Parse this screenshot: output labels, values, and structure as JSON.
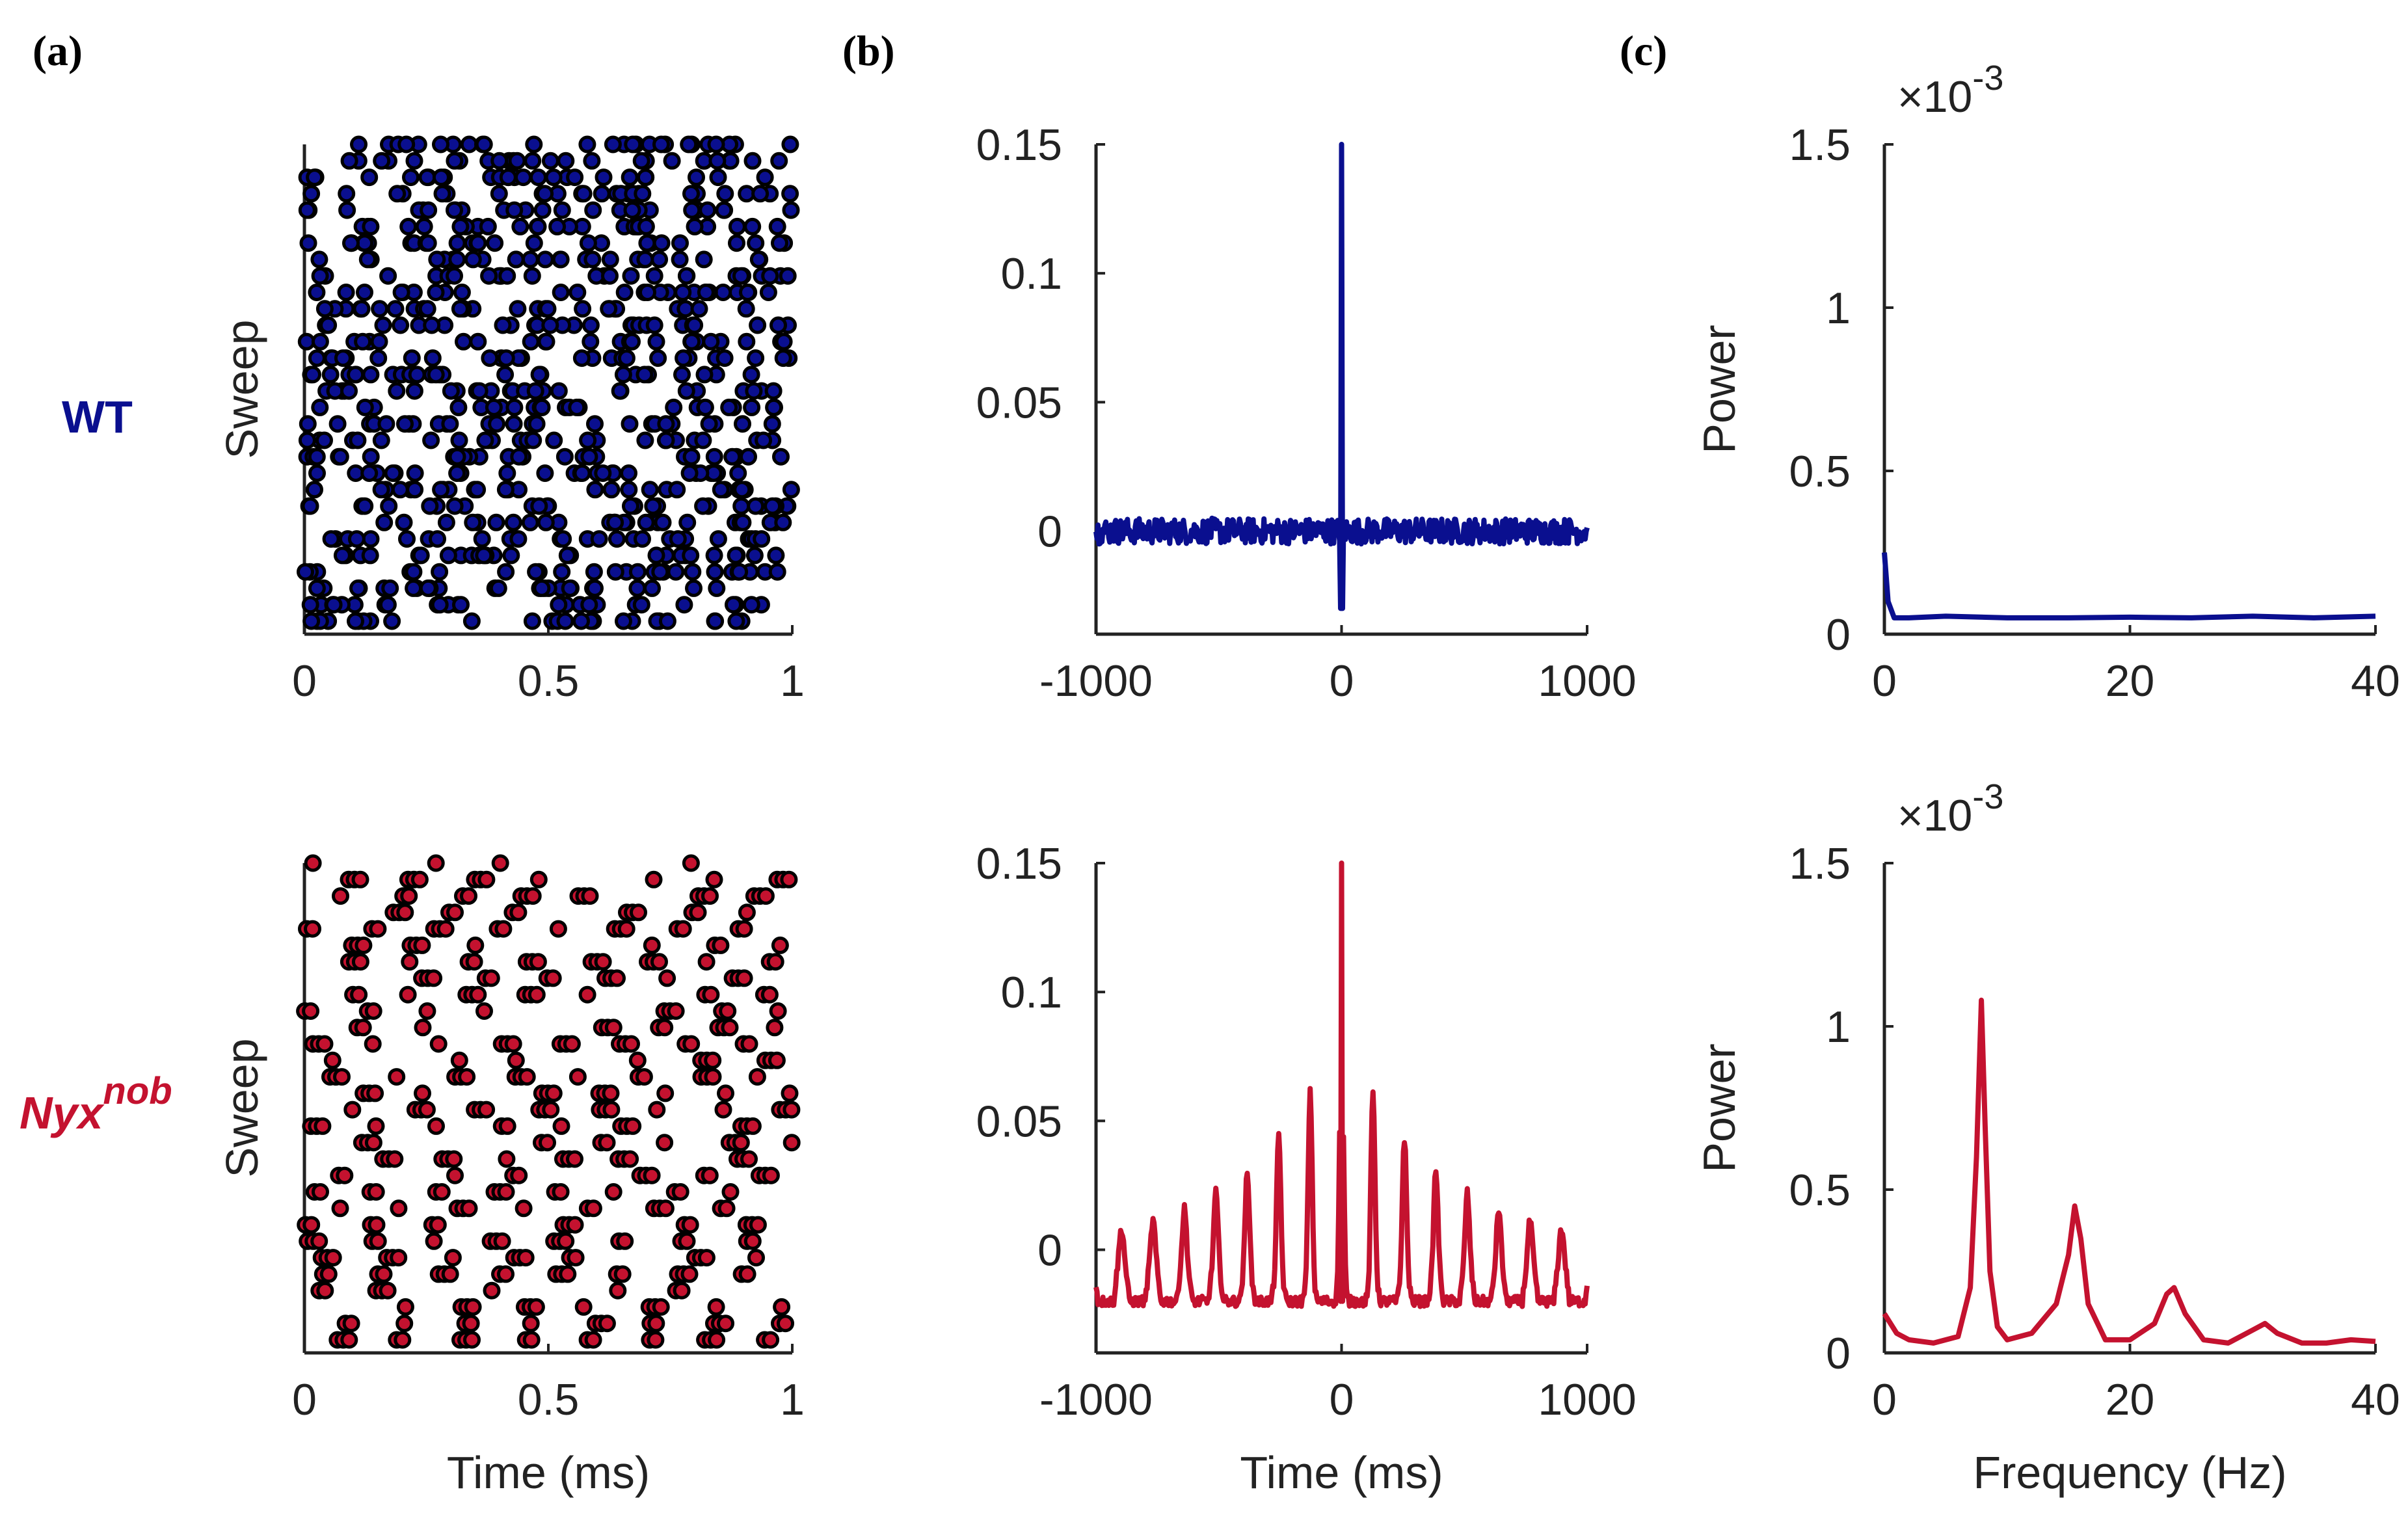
{
  "panel_labels": [
    "(a)",
    "(b)",
    "(c)"
  ],
  "rows": [
    {
      "name": "WT",
      "superscript": "",
      "color": "#0a0f8f"
    },
    {
      "name": "Nyx",
      "superscript": "nob",
      "color": "#c4122f"
    }
  ],
  "colors": {
    "wt": "#0a0f8f",
    "nyx": "#c4122f",
    "axis": "#222222"
  },
  "chart_data": [
    {
      "id": "raster_wt",
      "type": "scatter",
      "row": "WT",
      "xlabel": "",
      "ylabel": "Sweep",
      "xlim": [
        0,
        1
      ],
      "ylim": [
        0,
        30
      ],
      "xticks": [
        0,
        0.5,
        1
      ],
      "xtick_labels": [
        "0",
        "0.5",
        "1"
      ],
      "pattern": "random",
      "sweeps": 30,
      "spikes_per_sweep": 26,
      "marker_color": "#0a0f8f"
    },
    {
      "id": "autocorr_wt",
      "type": "line",
      "row": "WT",
      "xlabel": "",
      "ylabel": "",
      "xlim": [
        -1000,
        1000
      ],
      "ylim": [
        -0.04,
        0.15
      ],
      "xticks": [
        -1000,
        0,
        1000
      ],
      "xtick_labels": [
        "-1000",
        "0",
        "1000"
      ],
      "yticks": [
        0,
        0.05,
        0.1,
        0.15
      ],
      "ytick_labels": [
        "0",
        "0.05",
        "0.1",
        "0.15"
      ],
      "baseline": 0.0,
      "peak_at_zero": 0.15,
      "trough_at_zero": -0.03,
      "oscillation_period_ms": 0,
      "side_peak_height": 0,
      "line_color": "#0a0f8f"
    },
    {
      "id": "power_wt",
      "type": "line",
      "row": "WT",
      "xlabel": "",
      "ylabel": "Power",
      "exponent_label": "×10^-3",
      "exponent_prefix": "×10",
      "exponent_power": "-3",
      "xlim": [
        0,
        40
      ],
      "ylim": [
        0,
        1.5
      ],
      "xticks": [
        0,
        20,
        40
      ],
      "xtick_labels": [
        "0",
        "20",
        "40"
      ],
      "yticks": [
        0,
        0.5,
        1,
        1.5
      ],
      "ytick_labels": [
        "0",
        "0.5",
        "1",
        "1.5"
      ],
      "x": [
        0,
        0.3,
        0.8,
        2,
        5,
        10,
        15,
        20,
        25,
        30,
        35,
        40
      ],
      "values": [
        0.25,
        0.1,
        0.05,
        0.05,
        0.055,
        0.05,
        0.05,
        0.052,
        0.05,
        0.055,
        0.05,
        0.055
      ],
      "line_color": "#0a0f8f"
    },
    {
      "id": "raster_nyx",
      "type": "scatter",
      "row": "Nyx nob",
      "xlabel": "Time (ms)",
      "ylabel": "Sweep",
      "xlim": [
        0,
        1
      ],
      "ylim": [
        0,
        30
      ],
      "xticks": [
        0,
        0.5,
        1
      ],
      "xtick_labels": [
        "0",
        "0.5",
        "1"
      ],
      "pattern": "oscillatory",
      "sweeps": 30,
      "oscillation_period_s": 0.125,
      "marker_color": "#c4122f"
    },
    {
      "id": "autocorr_nyx",
      "type": "line",
      "row": "Nyx nob",
      "xlabel": "Time (ms)",
      "ylabel": "",
      "xlim": [
        -1000,
        1000
      ],
      "ylim": [
        -0.04,
        0.15
      ],
      "xticks": [
        -1000,
        0,
        1000
      ],
      "xtick_labels": [
        "-1000",
        "0",
        "1000"
      ],
      "yticks": [
        0,
        0.05,
        0.1,
        0.15
      ],
      "ytick_labels": [
        "0",
        "0.05",
        "0.1",
        "0.15"
      ],
      "baseline": -0.02,
      "peak_at_zero": 0.15,
      "trough_at_zero": -0.02,
      "oscillation_period_ms": 128,
      "side_peak_height": 0.085,
      "line_color": "#c4122f"
    },
    {
      "id": "power_nyx",
      "type": "line",
      "row": "Nyx nob",
      "xlabel": "Frequency (Hz)",
      "ylabel": "Power",
      "exponent_label": "×10^-3",
      "exponent_prefix": "×10",
      "exponent_power": "-3",
      "xlim": [
        0,
        40
      ],
      "ylim": [
        0,
        1.5
      ],
      "xticks": [
        0,
        20,
        40
      ],
      "xtick_labels": [
        "0",
        "20",
        "40"
      ],
      "yticks": [
        0,
        0.5,
        1,
        1.5
      ],
      "ytick_labels": [
        "0",
        "0.5",
        "1",
        "1.5"
      ],
      "x": [
        0,
        1,
        2,
        4,
        6,
        7,
        7.5,
        7.9,
        8.2,
        8.6,
        9.2,
        10,
        12,
        14,
        15,
        15.5,
        16,
        16.6,
        18,
        20,
        22,
        23,
        23.6,
        24.5,
        26,
        28,
        30,
        31,
        32,
        34,
        36,
        38,
        40
      ],
      "values": [
        0.12,
        0.06,
        0.04,
        0.03,
        0.05,
        0.2,
        0.6,
        1.08,
        0.7,
        0.25,
        0.08,
        0.04,
        0.06,
        0.15,
        0.3,
        0.45,
        0.35,
        0.15,
        0.04,
        0.04,
        0.09,
        0.18,
        0.2,
        0.12,
        0.04,
        0.03,
        0.07,
        0.09,
        0.06,
        0.03,
        0.03,
        0.04,
        0.035
      ],
      "line_color": "#c4122f"
    }
  ]
}
